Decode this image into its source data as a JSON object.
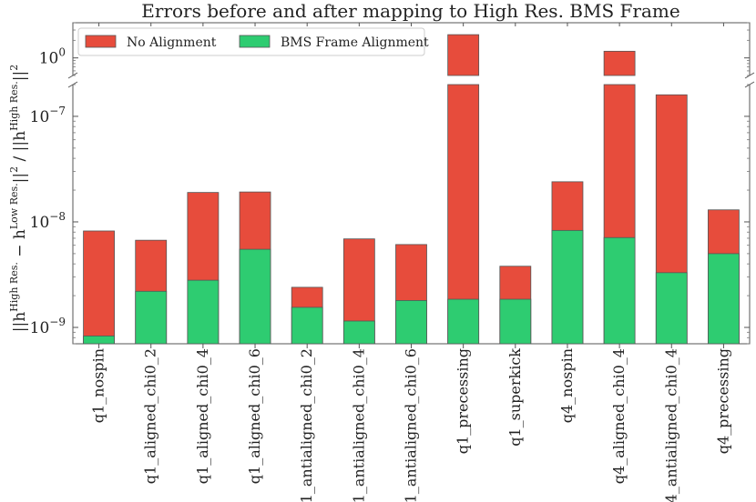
{
  "chart_data": {
    "type": "bar",
    "title": "Errors before and after mapping to High Res. BMS Frame",
    "ylabel": "||h^{High Res.} − h^{Low Res.}||^2 / ||h^{High Res.}||^2",
    "yscale": "log",
    "broken_axis": true,
    "legend_placement": "top-left",
    "categories": [
      "q1_nospin",
      "q1_aligned_chi0_2",
      "q1_aligned_chi0_4",
      "q1_aligned_chi0_6",
      "q1_antialigned_chi0_2",
      "q1_antialigned_chi0_4",
      "q1_antialigned_chi0_6",
      "q1_precessing",
      "q1_superkick",
      "q4_nospin",
      "q4_aligned_chi0_4",
      "q4_antialigned_chi0_4",
      "q4_precessing"
    ],
    "series": [
      {
        "name": "No Alignment",
        "color": "#e74c3c",
        "values": [
          8.2e-09,
          6.7e-09,
          1.9e-08,
          1.92e-08,
          2.4e-09,
          6.9e-09,
          6.1e-09,
          2.5,
          3.8e-09,
          2.4e-08,
          1.3,
          1.6e-07,
          1.3e-08
        ]
      },
      {
        "name": "BMS Frame Alignment",
        "color": "#2ecc71",
        "values": [
          8.3e-10,
          2.2e-09,
          2.8e-09,
          5.5e-09,
          1.55e-09,
          1.15e-09,
          1.8e-09,
          1.85e-09,
          1.85e-09,
          8.3e-09,
          7.1e-09,
          3.3e-09,
          5e-09
        ]
      }
    ],
    "ylim_lower": [
      7e-10,
      2e-07
    ],
    "ylim_upper": [
      0.5,
      4
    ],
    "yticks_lower": [
      {
        "value": 1e-09,
        "label": "10",
        "exp": "−9"
      },
      {
        "value": 1e-08,
        "label": "10",
        "exp": "−8"
      },
      {
        "value": 1e-07,
        "label": "10",
        "exp": "−7"
      }
    ],
    "yticks_upper": [
      {
        "value": 1,
        "label": "10",
        "exp": "0"
      }
    ]
  }
}
